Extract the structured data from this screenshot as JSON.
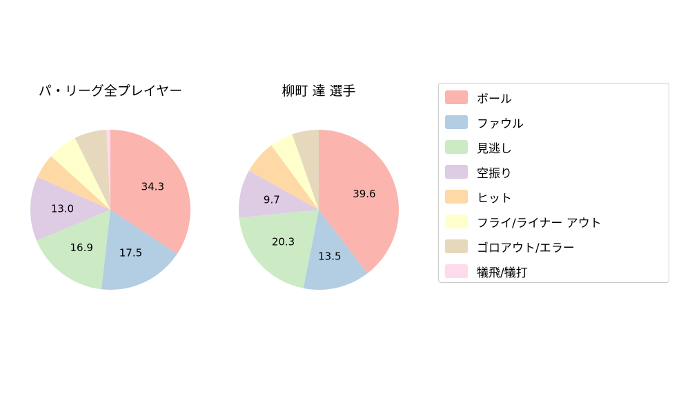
{
  "page": {
    "background": "#ffffff"
  },
  "chart_data": [
    {
      "type": "pie",
      "title": "パ・リーグ全プレイヤー",
      "categories": [
        "ボール",
        "ファウル",
        "見逃し",
        "空振り",
        "ヒット",
        "フライ/ライナー アウト",
        "ゴロアウト/エラー",
        "犠飛/犠打"
      ],
      "values": [
        34.3,
        17.5,
        16.9,
        13.0,
        5.0,
        6.0,
        6.5,
        0.8
      ],
      "labels_shown": [
        "34.3",
        "17.5",
        "16.9",
        "13.0",
        "",
        "",
        "",
        ""
      ],
      "colors": [
        "#fbb4ae",
        "#b3cde3",
        "#ccebc5",
        "#decbe4",
        "#fed9a6",
        "#ffffcc",
        "#e5d8bd",
        "#fddaec"
      ],
      "start_angle": "top",
      "direction": "clockwise",
      "units": "percent"
    },
    {
      "type": "pie",
      "title": "柳町 達 選手",
      "categories": [
        "ボール",
        "ファウル",
        "見逃し",
        "空振り",
        "ヒット",
        "フライ/ライナー アウト",
        "ゴロアウト/エラー",
        "犠飛/犠打"
      ],
      "values": [
        39.6,
        13.5,
        20.3,
        9.7,
        6.8,
        4.7,
        5.4,
        0.0
      ],
      "labels_shown": [
        "39.6",
        "13.5",
        "20.3",
        "9.7",
        "",
        "",
        "",
        ""
      ],
      "colors": [
        "#fbb4ae",
        "#b3cde3",
        "#ccebc5",
        "#decbe4",
        "#fed9a6",
        "#ffffcc",
        "#e5d8bd",
        "#fddaec"
      ],
      "start_angle": "top",
      "direction": "clockwise",
      "units": "percent"
    }
  ],
  "legend": {
    "position": "right",
    "items": [
      {
        "label": "ボール",
        "color": "#fbb4ae"
      },
      {
        "label": "ファウル",
        "color": "#b3cde3"
      },
      {
        "label": "見逃し",
        "color": "#ccebc5"
      },
      {
        "label": "空振り",
        "color": "#decbe4"
      },
      {
        "label": "ヒット",
        "color": "#fed9a6"
      },
      {
        "label": "フライ/ライナー アウト",
        "color": "#ffffcc"
      },
      {
        "label": "ゴロアウト/エラー",
        "color": "#e5d8bd"
      },
      {
        "label": "犠飛/犠打",
        "color": "#fddaec"
      }
    ]
  }
}
